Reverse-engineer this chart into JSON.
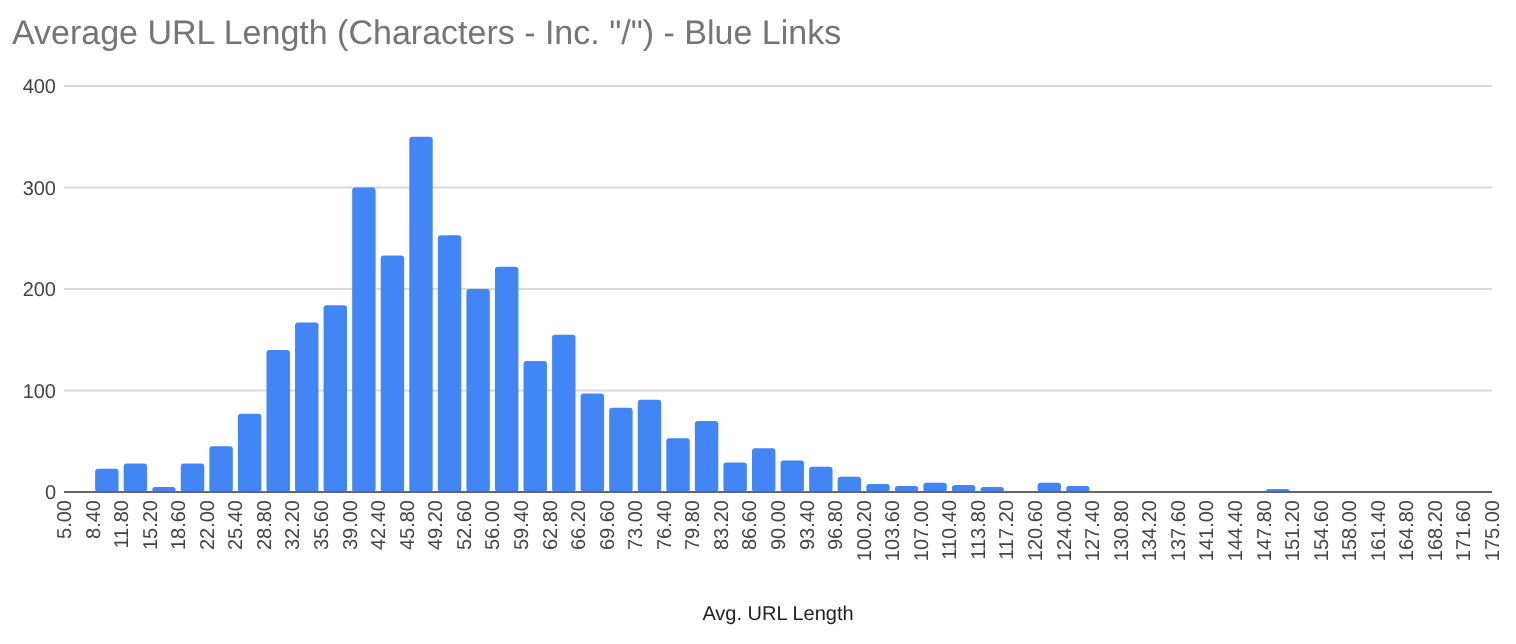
{
  "chart_data": {
    "type": "histogram",
    "title": "Average URL Length (Characters - Inc. \"/\") - Blue Links",
    "xlabel": "Avg. URL Length",
    "bins": [
      5,
      8.4,
      11.8,
      15.2,
      18.6,
      22,
      25.4,
      28.8,
      32.2,
      35.6,
      39,
      42.4,
      45.8,
      49.2,
      52.6,
      56,
      59.4,
      62.8,
      66.2,
      69.6,
      73,
      76.4,
      79.8,
      83.2,
      86.6,
      90,
      93.4,
      96.8,
      100.2,
      103.6,
      107,
      110.4,
      113.8,
      117.2,
      120.6,
      124,
      127.4,
      130.8,
      134.2,
      137.6,
      141,
      144.4,
      147.8,
      151.2,
      154.6,
      158,
      161.4,
      164.8,
      168.2,
      171.6,
      175
    ],
    "values": [
      0,
      23,
      28,
      5,
      28,
      45,
      77,
      140,
      167,
      184,
      300,
      233,
      350,
      253,
      200,
      222,
      129,
      155,
      97,
      83,
      91,
      53,
      70,
      29,
      43,
      31,
      25,
      15,
      8,
      6,
      9,
      7,
      5,
      1,
      9,
      6,
      0,
      1,
      0,
      0,
      1,
      1,
      3,
      1,
      0,
      0,
      0,
      0,
      0,
      1
    ],
    "color": "#4285f4",
    "xlim": [
      5,
      175
    ],
    "xticks": [
      {
        "value": 5,
        "label": "5.00"
      },
      {
        "value": 8.4,
        "label": "8.40"
      },
      {
        "value": 11.8,
        "label": "11.80"
      },
      {
        "value": 15.2,
        "label": "15.20"
      },
      {
        "value": 18.6,
        "label": "18.60"
      },
      {
        "value": 22,
        "label": "22.00"
      },
      {
        "value": 25.4,
        "label": "25.40"
      },
      {
        "value": 28.8,
        "label": "28.80"
      },
      {
        "value": 32.2,
        "label": "32.20"
      },
      {
        "value": 35.6,
        "label": "35.60"
      },
      {
        "value": 39,
        "label": "39.00"
      },
      {
        "value": 42.4,
        "label": "42.40"
      },
      {
        "value": 45.8,
        "label": "45.80"
      },
      {
        "value": 49.2,
        "label": "49.20"
      },
      {
        "value": 52.6,
        "label": "52.60"
      },
      {
        "value": 56,
        "label": "56.00"
      },
      {
        "value": 59.4,
        "label": "59.40"
      },
      {
        "value": 62.8,
        "label": "62.80"
      },
      {
        "value": 66.2,
        "label": "66.20"
      },
      {
        "value": 69.6,
        "label": "69.60"
      },
      {
        "value": 73,
        "label": "73.00"
      },
      {
        "value": 76.4,
        "label": "76.40"
      },
      {
        "value": 79.8,
        "label": "79.80"
      },
      {
        "value": 83.2,
        "label": "83.20"
      },
      {
        "value": 86.6,
        "label": "86.60"
      },
      {
        "value": 90,
        "label": "90.00"
      },
      {
        "value": 93.4,
        "label": "93.40"
      },
      {
        "value": 96.8,
        "label": "96.80"
      },
      {
        "value": 100.2,
        "label": "100.20"
      },
      {
        "value": 103.6,
        "label": "103.60"
      },
      {
        "value": 107,
        "label": "107.00"
      },
      {
        "value": 110.4,
        "label": "110.40"
      },
      {
        "value": 113.8,
        "label": "113.80"
      },
      {
        "value": 117.2,
        "label": "117.20"
      },
      {
        "value": 120.6,
        "label": "120.60"
      },
      {
        "value": 124,
        "label": "124.00"
      },
      {
        "value": 127.4,
        "label": "127.40"
      },
      {
        "value": 130.8,
        "label": "130.80"
      },
      {
        "value": 134.2,
        "label": "134.20"
      },
      {
        "value": 137.6,
        "label": "137.60"
      },
      {
        "value": 141,
        "label": "141.00"
      },
      {
        "value": 144.4,
        "label": "144.40"
      },
      {
        "value": 147.8,
        "label": "147.80"
      },
      {
        "value": 151.2,
        "label": "151.20"
      },
      {
        "value": 154.6,
        "label": "154.60"
      },
      {
        "value": 158,
        "label": "158.00"
      },
      {
        "value": 161.4,
        "label": "161.40"
      },
      {
        "value": 164.8,
        "label": "164.80"
      },
      {
        "value": 168.2,
        "label": "168.20"
      },
      {
        "value": 171.6,
        "label": "171.60"
      },
      {
        "value": 175,
        "label": "175.00"
      }
    ],
    "ylim": [
      0,
      400
    ],
    "yticks": [
      0,
      100,
      200,
      300,
      400
    ],
    "grid": "y"
  }
}
